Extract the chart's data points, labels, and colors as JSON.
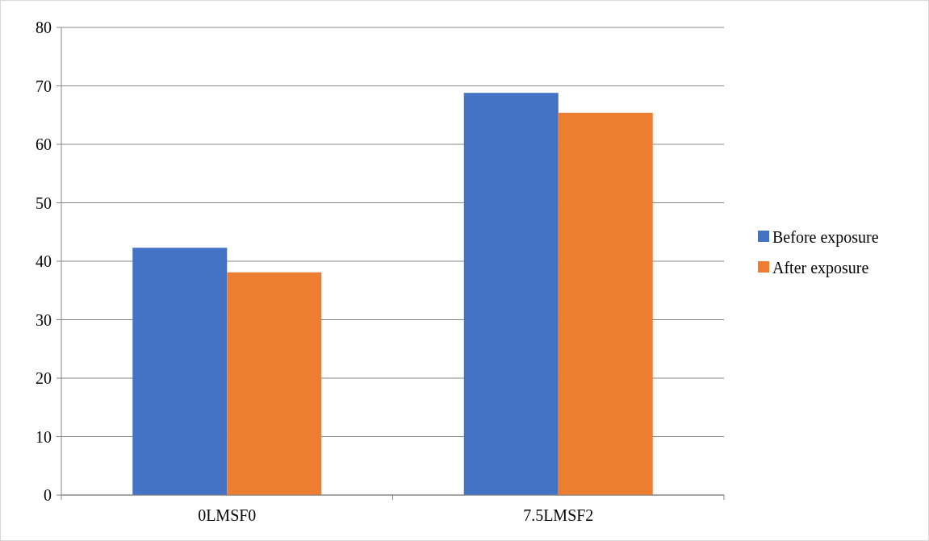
{
  "chart_data": {
    "type": "bar",
    "categories": [
      "0LMSF0",
      "7.5LMSF2"
    ],
    "series": [
      {
        "name": "Before exposure",
        "color": "#4472c4",
        "values": [
          42.3,
          68.8
        ]
      },
      {
        "name": "After exposure",
        "color": "#ed7d31",
        "values": [
          38.1,
          65.4
        ]
      }
    ],
    "ylim": [
      0,
      80
    ],
    "yticks": [
      0,
      10,
      20,
      30,
      40,
      50,
      60,
      70,
      80
    ],
    "grid": "y",
    "legend": "right"
  }
}
